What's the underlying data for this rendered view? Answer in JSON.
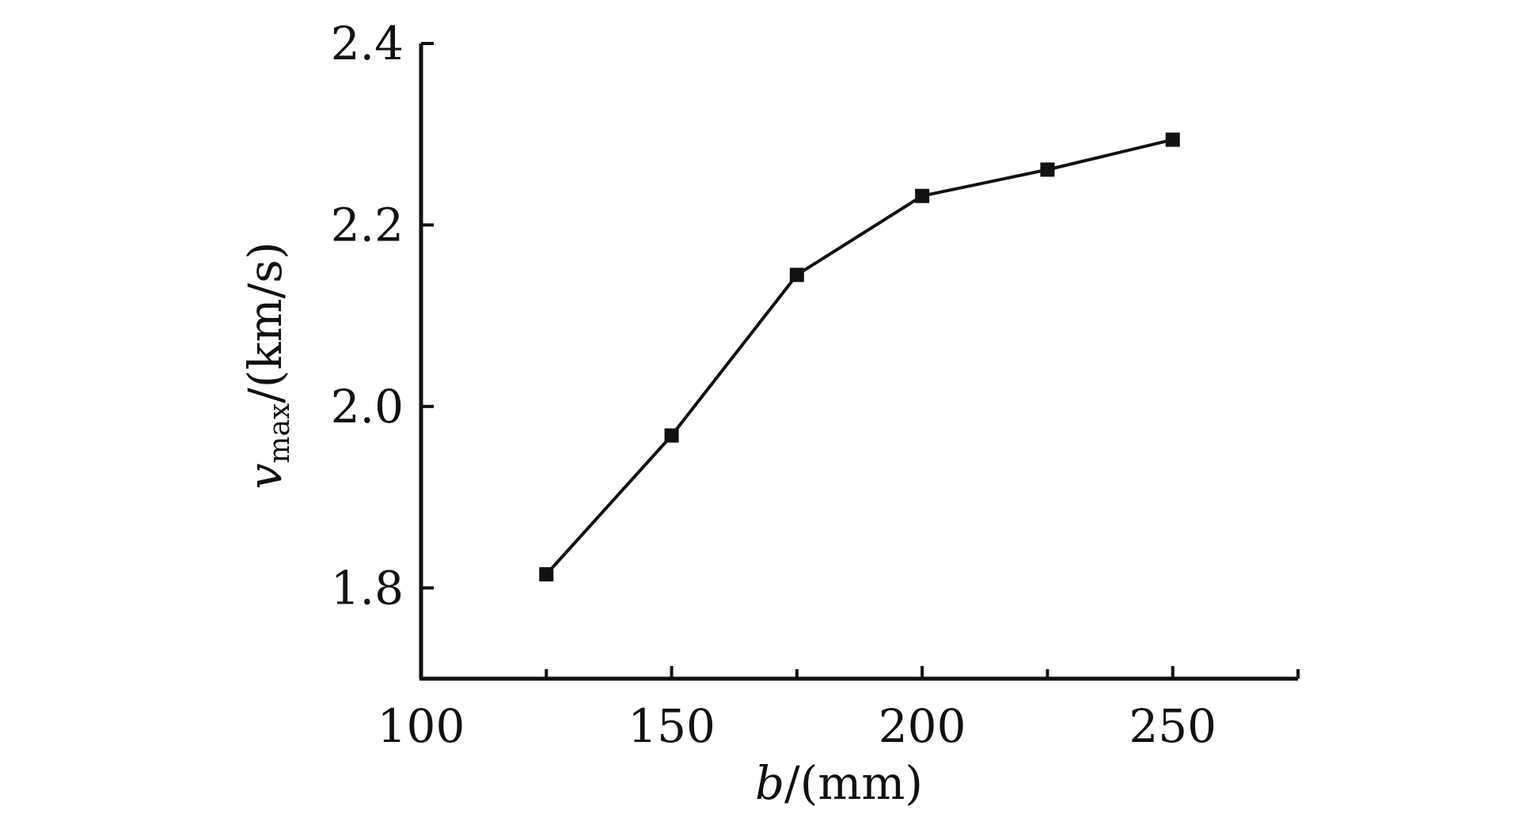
{
  "chart_data": {
    "type": "line",
    "title": "",
    "xlabel": {
      "var": "b",
      "unit": "/(mm)"
    },
    "ylabel": {
      "var": "v",
      "sub": "max",
      "unit": "/(km/s)"
    },
    "xlim": [
      100,
      275
    ],
    "ylim": [
      1.7,
      2.4
    ],
    "xticks": [
      100,
      150,
      200,
      250
    ],
    "xtick_labels": [
      "100",
      "150",
      "200",
      "250"
    ],
    "xminor": [
      125,
      175,
      225,
      275
    ],
    "yticks": [
      1.8,
      2.0,
      2.2,
      2.4
    ],
    "ytick_labels": [
      "1.8",
      "2.0",
      "2.2",
      "2.4"
    ],
    "grid": false,
    "legend": "none",
    "marker": "square",
    "line_color": "#111111",
    "series": [
      {
        "x": [
          125,
          150,
          175,
          200,
          225,
          250
        ],
        "values": [
          1.815,
          1.968,
          2.145,
          2.232,
          2.261,
          2.294
        ]
      }
    ]
  }
}
